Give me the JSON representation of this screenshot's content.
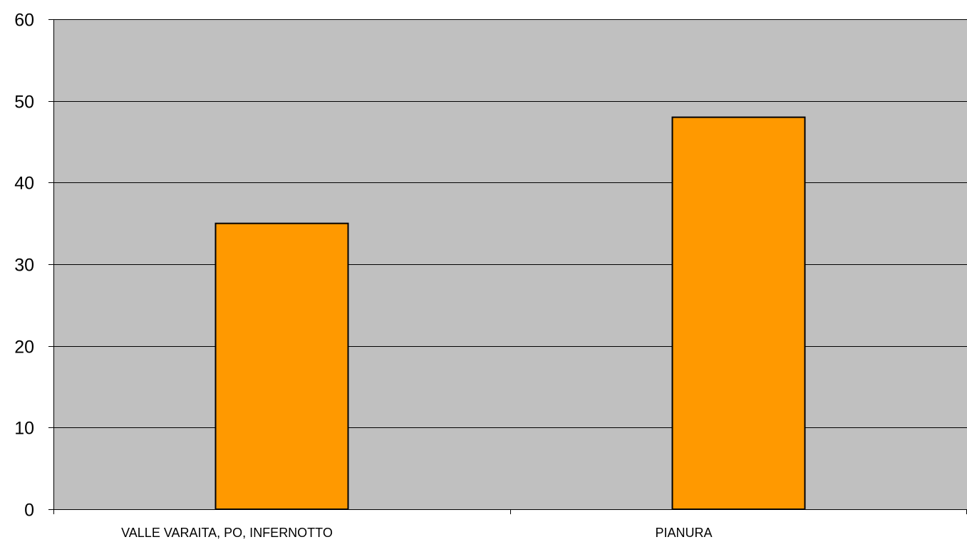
{
  "chart_data": {
    "type": "bar",
    "categories": [
      "VALLE VARAITA, PO, INFERNOTTO",
      "PIANURA"
    ],
    "values": [
      35,
      48
    ],
    "ylim": [
      0,
      60
    ],
    "yticks": [
      0,
      10,
      20,
      30,
      40,
      50,
      60
    ],
    "title": "",
    "xlabel": "",
    "ylabel": "",
    "grid": true,
    "legend": "none"
  },
  "colors": {
    "plot_background": "#c0c0c0",
    "bar_fill": "#ff9900",
    "bar_stroke": "#000000",
    "gridline": "#000000",
    "axis": "#000000"
  }
}
